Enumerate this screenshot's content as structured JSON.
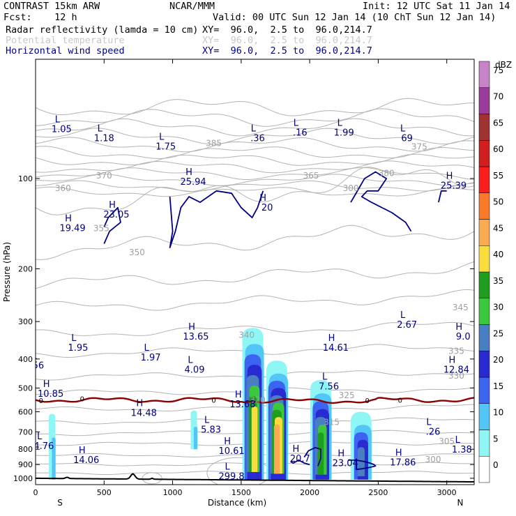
{
  "header": {
    "line1_left": "CONTRAST 15km ARW",
    "line1_mid": "NCAR/MMM",
    "line1_right": "Init: 12 UTC Sat 11 Jan 14",
    "line2_left": "Fcst:    12 h",
    "line2_right": "Valid: 00 UTC Sun 12 Jan 14 (10 ChT Sun 12 Jan 14)",
    "fields": [
      {
        "name": "Radar reflectivity (lamda = 10 cm)",
        "xy": "XY=  96.0,  2.5 to  96.0,214.7",
        "color": "#000000"
      },
      {
        "name": "Potential temperature",
        "xy": "XY=  96.0,  2.5 to  96.0,214.7",
        "color": "#c8c8c8"
      },
      {
        "name": "Horizontal wind speed",
        "xy": "XY=  96.0,  2.5 to  96.0,214.7",
        "color": "#000080"
      }
    ]
  },
  "chart_data": {
    "type": "heatmap",
    "xlabel": "Distance (km)",
    "ylabel": "Pressure (hPa)",
    "xlim": [
      0,
      3200
    ],
    "ylim": [
      1050,
      40
    ],
    "y_scale": "log",
    "x_ticks": [
      0,
      500,
      1000,
      1500,
      2000,
      2500,
      3000
    ],
    "y_ticks": [
      100,
      200,
      300,
      400,
      500,
      600,
      700,
      800,
      900,
      1000
    ],
    "x_end_labels": {
      "left": "S",
      "right": "N"
    },
    "colorbar": {
      "unit": "dBZ",
      "levels": [
        0,
        5,
        10,
        15,
        20,
        25,
        30,
        35,
        40,
        45,
        50,
        55,
        60,
        65,
        70,
        75
      ],
      "colors": [
        "#ffffff",
        "#8ff6f6",
        "#52c6f7",
        "#3c64f0",
        "#2a2ad2",
        "#4a7ec2",
        "#3cc83c",
        "#1f9d1f",
        "#fadc3c",
        "#faaa50",
        "#fa7a28",
        "#fa1e1e",
        "#d21e1e",
        "#a03232",
        "#9b3c9b",
        "#c882c8"
      ]
    },
    "reflectivity_cells": [
      {
        "x": 1590,
        "p_top": 315,
        "p_bottom": 1010,
        "core": [
          30,
          40
        ]
      },
      {
        "x": 1765,
        "p_top": 405,
        "p_bottom": 1010,
        "core": [
          35,
          45
        ]
      },
      {
        "x": 2085,
        "p_top": 470,
        "p_bottom": 1010,
        "core": [
          30,
          35
        ]
      },
      {
        "x": 2380,
        "p_top": 600,
        "p_bottom": 1010,
        "core": [
          20,
          25
        ]
      },
      {
        "x": 125,
        "p_top": 610,
        "p_bottom": 1010,
        "core": [
          5,
          10
        ]
      },
      {
        "x": 1160,
        "p_top": 595,
        "p_bottom": 800,
        "core": [
          5,
          10
        ]
      }
    ],
    "potential_temperature_labels": [
      {
        "text": "360",
        "x": 200,
        "p": 110
      },
      {
        "text": "355",
        "x": 480,
        "p": 150
      },
      {
        "text": "350",
        "x": 740,
        "p": 180
      },
      {
        "text": "345",
        "x": 3100,
        "p": 275
      },
      {
        "text": "340",
        "x": 1540,
        "p": 340
      },
      {
        "text": "335",
        "x": 3070,
        "p": 385
      },
      {
        "text": "330",
        "x": 3070,
        "p": 465
      },
      {
        "text": "325",
        "x": 2270,
        "p": 540
      },
      {
        "text": "320",
        "x": 1620,
        "p": 560
      },
      {
        "text": "315",
        "x": 2160,
        "p": 665
      },
      {
        "text": "305",
        "x": 3000,
        "p": 770
      },
      {
        "text": "300",
        "x": 2900,
        "p": 885
      },
      {
        "text": "385",
        "x": 1300,
        "p": 78
      },
      {
        "text": "380",
        "x": 2560,
        "p": 98
      },
      {
        "text": "375",
        "x": 2800,
        "p": 80
      },
      {
        "text": "370",
        "x": 500,
        "p": 100
      },
      {
        "text": "365",
        "x": 2010,
        "p": 100
      },
      {
        "text": "300",
        "x": 2300,
        "p": 110
      }
    ],
    "wind_speed_labels": [
      {
        "hl": "L",
        "value": "1.05",
        "x": 190,
        "p": 70
      },
      {
        "hl": "L",
        "value": "1.18",
        "x": 500,
        "p": 75
      },
      {
        "hl": "L",
        "value": "1.75",
        "x": 950,
        "p": 80
      },
      {
        "hl": "L",
        "value": ".36",
        "x": 1620,
        "p": 75
      },
      {
        "hl": "L",
        "value": ".16",
        "x": 1930,
        "p": 72
      },
      {
        "hl": "L",
        "value": "1.99",
        "x": 2250,
        "p": 72
      },
      {
        "hl": "L",
        "value": "69",
        "x": 2710,
        "p": 75
      },
      {
        "hl": "H",
        "value": "25.94",
        "x": 1150,
        "p": 105
      },
      {
        "hl": "H",
        "value": "20",
        "x": 1690,
        "p": 128
      },
      {
        "hl": "H",
        "value": "25.39",
        "x": 3050,
        "p": 108
      },
      {
        "hl": "H",
        "value": "23.05",
        "x": 590,
        "p": 135
      },
      {
        "hl": "H",
        "value": "19.49",
        "x": 270,
        "p": 150
      },
      {
        "hl": "L",
        "value": "2.67",
        "x": 2710,
        "p": 315
      },
      {
        "hl": "H",
        "value": "13.65",
        "x": 1170,
        "p": 345
      },
      {
        "hl": "H",
        "value": "9.0",
        "x": 3120,
        "p": 345
      },
      {
        "hl": "L",
        "value": "1.95",
        "x": 310,
        "p": 375
      },
      {
        "hl": "H",
        "value": "14.61",
        "x": 2190,
        "p": 375
      },
      {
        "hl": "L",
        "value": "1.97",
        "x": 840,
        "p": 405
      },
      {
        "hl": "L",
        "value": "56",
        "x": 20,
        "p": 430
      },
      {
        "hl": "L",
        "value": "4.09",
        "x": 1160,
        "p": 445
      },
      {
        "hl": "H",
        "value": "12.84",
        "x": 3070,
        "p": 445
      },
      {
        "hl": "L",
        "value": "7.56",
        "x": 2140,
        "p": 505
      },
      {
        "hl": "H",
        "value": "10.85",
        "x": 110,
        "p": 535
      },
      {
        "hl": "H",
        "value": "13.68",
        "x": 1510,
        "p": 580
      },
      {
        "hl": "H",
        "value": "14.48",
        "x": 790,
        "p": 620
      },
      {
        "hl": "L",
        "value": "5.83",
        "x": 1280,
        "p": 705
      },
      {
        "hl": "L",
        "value": ".26",
        "x": 2900,
        "p": 715
      },
      {
        "hl": "L",
        "value": "4.76",
        "x": 60,
        "p": 800
      },
      {
        "hl": "L",
        "value": "1.38",
        "x": 3110,
        "p": 820
      },
      {
        "hl": "H",
        "value": "10.61",
        "x": 1430,
        "p": 830
      },
      {
        "hl": "H",
        "value": "14.06",
        "x": 370,
        "p": 890
      },
      {
        "hl": "H",
        "value": "20.7",
        "x": 1930,
        "p": 880
      },
      {
        "hl": "H",
        "value": "23.04",
        "x": 2260,
        "p": 910
      },
      {
        "hl": "H",
        "value": "17.86",
        "x": 2680,
        "p": 905
      },
      {
        "hl": "L",
        "value": "299.8",
        "x": 1430,
        "p": 1010
      }
    ],
    "freezing_level_label": "0"
  }
}
